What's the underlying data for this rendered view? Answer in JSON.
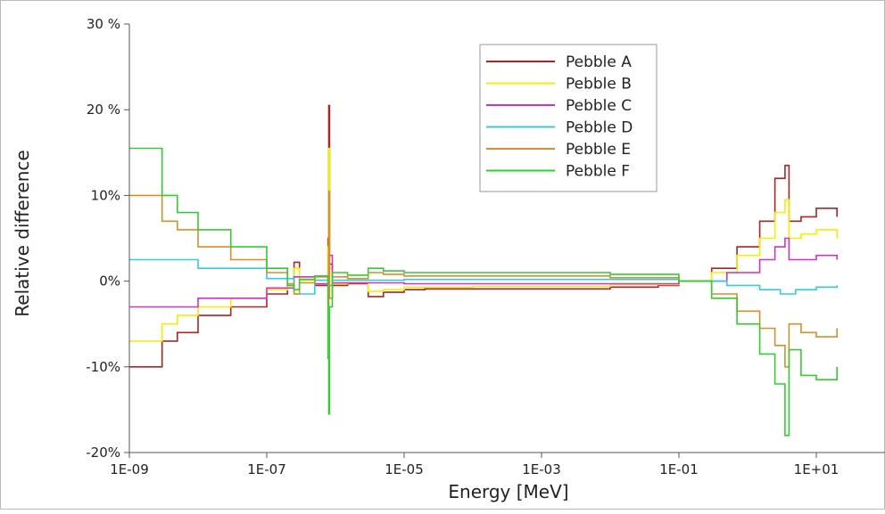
{
  "chart_data": {
    "type": "line",
    "xlabel": "Energy [MeV]",
    "ylabel": "Relative difference",
    "x_scale": "log",
    "xlim": [
      1e-09,
      100.0
    ],
    "ylim": [
      -20,
      30
    ],
    "x_ticks": [
      {
        "value": 1e-09,
        "label": "1E-09"
      },
      {
        "value": 1e-07,
        "label": "1E-07"
      },
      {
        "value": 1e-05,
        "label": "1E-05"
      },
      {
        "value": 0.001,
        "label": "1E-03"
      },
      {
        "value": 0.1,
        "label": "1E-01"
      },
      {
        "value": 10,
        "label": "1E+01"
      }
    ],
    "y_ticks": [
      {
        "value": 30,
        "label": "30 %"
      },
      {
        "value": 20,
        "label": "20 %"
      },
      {
        "value": 10,
        "label": "10%"
      },
      {
        "value": 0,
        "label": "0%"
      },
      {
        "value": -10,
        "label": "-10%"
      },
      {
        "value": -20,
        "label": "-20%"
      }
    ],
    "grid": false,
    "legend_position": "top-right",
    "series": [
      {
        "name": "Pebble A",
        "color": "#b22222",
        "x": [
          1e-09,
          2e-09,
          3e-09,
          5e-09,
          1e-08,
          3e-08,
          1e-07,
          2e-07,
          2.5e-07,
          3e-07,
          5e-07,
          7e-07,
          7.8e-07,
          8e-07,
          8.2e-07,
          9e-07,
          1.5e-06,
          3e-06,
          5e-06,
          1e-05,
          2e-05,
          0.0001,
          0.001,
          0.01,
          0.05,
          0.1,
          0.3,
          0.7,
          1.5,
          2.5,
          3.5,
          4,
          6,
          10,
          20
        ],
        "y": [
          -10,
          -10,
          -7,
          -6,
          -4,
          -3,
          -1.5,
          -0.5,
          2.2,
          0.2,
          -0.5,
          -0.5,
          5,
          20.5,
          2,
          -0.5,
          -0.3,
          -1.8,
          -1.3,
          -1,
          -0.9,
          -0.9,
          -0.9,
          -0.7,
          -0.5,
          0,
          1.5,
          4,
          7,
          12,
          13.5,
          7,
          7.5,
          8.5,
          7.5
        ]
      },
      {
        "name": "Pebble B",
        "color": "#f0f000",
        "x": [
          1e-09,
          2e-09,
          3e-09,
          5e-09,
          1e-08,
          3e-08,
          1e-07,
          2e-07,
          2.5e-07,
          3e-07,
          5e-07,
          7e-07,
          7.8e-07,
          8e-07,
          8.2e-07,
          9e-07,
          1.5e-06,
          3e-06,
          5e-06,
          1e-05,
          0.0001,
          0.001,
          0.01,
          0.1,
          0.3,
          0.7,
          1.5,
          2.5,
          3.5,
          4,
          6,
          10,
          20
        ],
        "y": [
          -7,
          -7,
          -5,
          -4,
          -3,
          -2,
          -1,
          -0.5,
          1.5,
          0.1,
          -0.3,
          -0.3,
          4,
          15.5,
          1.5,
          -0.3,
          -0.2,
          -1.2,
          -1,
          -0.7,
          -0.6,
          -0.6,
          -0.4,
          0,
          1,
          3,
          5,
          8,
          9.5,
          5,
          5.5,
          6,
          5
        ]
      },
      {
        "name": "Pebble C",
        "color": "#cc33cc",
        "x": [
          1e-09,
          2e-09,
          1e-08,
          1e-07,
          2.5e-07,
          5e-07,
          8e-07,
          9e-07,
          1e-05,
          0.001,
          0.1,
          0.5,
          1.5,
          2.5,
          3.5,
          4,
          10,
          20
        ],
        "y": [
          -3,
          -3,
          -2,
          -0.8,
          0.5,
          -0.3,
          3,
          -0.2,
          -0.3,
          -0.3,
          0,
          1,
          2.5,
          4,
          5,
          2.5,
          3,
          2.5
        ]
      },
      {
        "name": "Pebble D",
        "color": "#33ccdd",
        "x": [
          1e-09,
          2e-09,
          1e-08,
          1e-07,
          2.5e-07,
          5e-07,
          8e-07,
          9e-07,
          1e-05,
          0.001,
          0.1,
          0.5,
          1.5,
          3,
          5,
          10,
          20
        ],
        "y": [
          2.5,
          2.5,
          1.5,
          0.3,
          -1.5,
          0.1,
          -0.5,
          0.1,
          0.2,
          0.2,
          0,
          -0.5,
          -1,
          -1.5,
          -1,
          -0.7,
          -0.5
        ]
      },
      {
        "name": "Pebble E",
        "color": "#d4902a",
        "x": [
          1e-09,
          2e-09,
          3e-09,
          5e-09,
          1e-08,
          3e-08,
          1e-07,
          2e-07,
          2.5e-07,
          3e-07,
          5e-07,
          7e-07,
          7.8e-07,
          8e-07,
          8.2e-07,
          9e-07,
          1.5e-06,
          3e-06,
          5e-06,
          1e-05,
          0.0001,
          0.001,
          0.01,
          0.1,
          0.3,
          0.7,
          1.5,
          2.5,
          3.5,
          4,
          6,
          10,
          20
        ],
        "y": [
          10,
          10,
          7,
          6,
          4,
          2.5,
          1,
          -0.3,
          -1.5,
          -0.2,
          0.5,
          0.5,
          -3,
          10.5,
          -2,
          0.5,
          0.3,
          1,
          0.8,
          0.6,
          0.6,
          0.6,
          0.4,
          0,
          -1.5,
          -3.5,
          -5.5,
          -7.5,
          -10,
          -5,
          -6,
          -6.5,
          -5.5
        ]
      },
      {
        "name": "Pebble F",
        "color": "#33cc33",
        "x": [
          1e-09,
          2e-09,
          3e-09,
          5e-09,
          1e-08,
          3e-08,
          1e-07,
          2e-07,
          2.5e-07,
          3e-07,
          5e-07,
          7e-07,
          7.8e-07,
          8e-07,
          8.2e-07,
          9e-07,
          1.5e-06,
          3e-06,
          5e-06,
          1e-05,
          0.0001,
          0.001,
          0.01,
          0.1,
          0.3,
          0.7,
          1.5,
          2.5,
          3.5,
          4,
          6,
          10,
          20
        ],
        "y": [
          15.5,
          15.5,
          10,
          8,
          6,
          4,
          1.5,
          -0.5,
          -1,
          0.2,
          0.6,
          0.6,
          -9,
          -15.5,
          -3,
          1,
          0.7,
          1.5,
          1.2,
          1,
          1,
          1,
          0.8,
          0,
          -2,
          -5,
          -8.5,
          -12,
          -18,
          -8,
          -11,
          -11.5,
          -10
        ]
      }
    ]
  }
}
